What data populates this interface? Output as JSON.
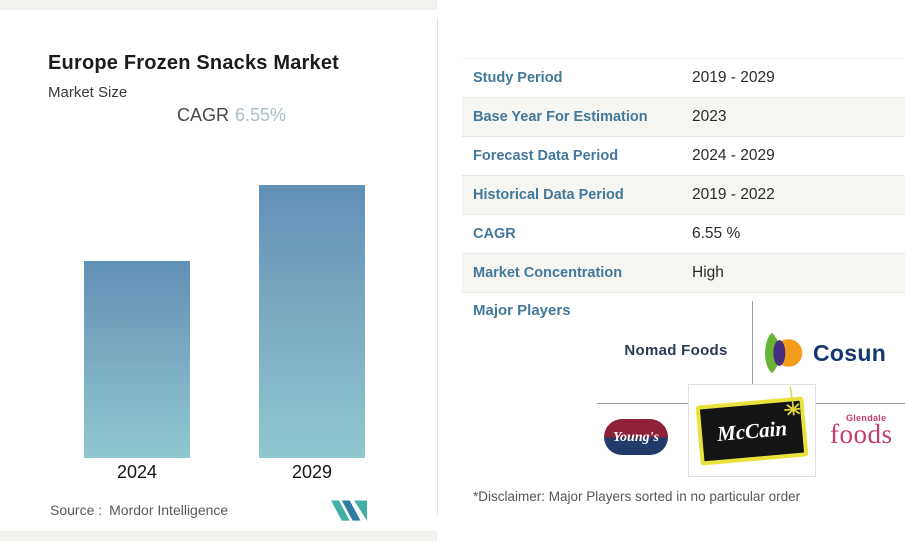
{
  "left_panel": {
    "title": "Europe Frozen Snacks Market",
    "subtitle": "Market Size",
    "cagr_label": "CAGR",
    "cagr_value": "6.55%",
    "source_label": "Source :",
    "source_value": "Mordor Intelligence",
    "bar_labels": [
      "2024",
      "2029"
    ]
  },
  "chart_data": {
    "type": "bar",
    "title": "Europe Frozen Snacks Market — Market Size",
    "categories": [
      "2024",
      "2029"
    ],
    "values": [
      0.72,
      1.0
    ],
    "values_note": "relative bar heights; no numeric value axis is shown in the image",
    "xlabel": "",
    "ylabel": "Market Size",
    "grid": false,
    "legend": false,
    "bar_gradient_top": "#6190b6",
    "bar_gradient_bottom": "#8fc8cf"
  },
  "facts_table": {
    "rows": [
      {
        "label": "Study Period",
        "value": "2019 - 2029"
      },
      {
        "label": "Base Year For Estimation",
        "value": "2023"
      },
      {
        "label": "Forecast Data Period",
        "value": "2024 - 2029"
      },
      {
        "label": "Historical Data Period",
        "value": "2019 - 2022"
      },
      {
        "label": "CAGR",
        "value": "6.55 %"
      },
      {
        "label": "Market Concentration",
        "value": "High"
      }
    ]
  },
  "major_players": {
    "label": "Major Players",
    "nomad_foods": "Nomad Foods",
    "cosun": "Cosun",
    "youngs": "Young's",
    "mccain": "McCain",
    "glendale_top": "Glendale",
    "glendale_bottom": "foods",
    "disclaimer": "*Disclaimer: Major Players sorted in no particular order"
  },
  "colors": {
    "table_label_teal": "#44789a",
    "cagr_value_muted_blue": "#a9c0cb",
    "bar_gradient_top": "#6190b6",
    "bar_gradient_bottom": "#8fc8cf",
    "mordor_logo_teal": "#43b0a5",
    "mordor_logo_blue": "#2e7da1",
    "mccain_yellow": "#e9e23c",
    "youngs_red": "#8e2138",
    "youngs_blue": "#223a69",
    "glendale_pink": "#c63c67",
    "cosun_navy": "#14386e"
  }
}
